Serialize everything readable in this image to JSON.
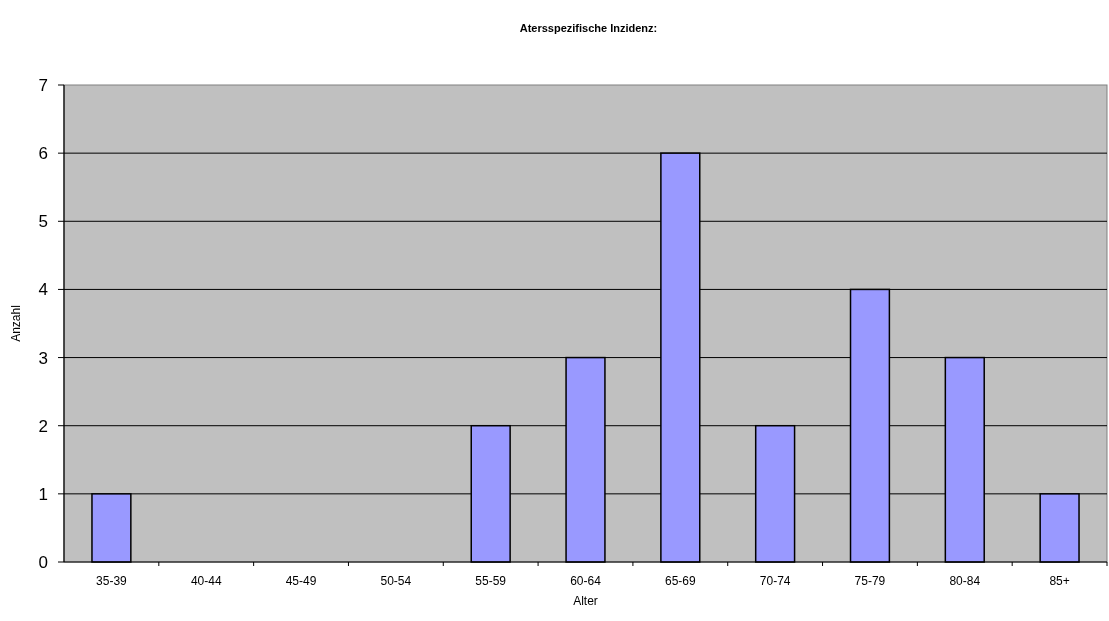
{
  "chart_data": {
    "type": "bar",
    "title": "Atersspezifische Inzidenz:",
    "xlabel": "Alter",
    "ylabel": "Anzahl",
    "categories": [
      "35-39",
      "40-44",
      "45-49",
      "50-54",
      "55-59",
      "60-64",
      "65-69",
      "70-74",
      "75-79",
      "80-84",
      "85+"
    ],
    "values": [
      1,
      0,
      0,
      0,
      2,
      3,
      6,
      2,
      4,
      3,
      1
    ],
    "color": "#9999ff",
    "ylim": [
      0,
      7
    ],
    "yticks": [
      0,
      1,
      2,
      3,
      4,
      5,
      6,
      7
    ],
    "grid": "y"
  }
}
